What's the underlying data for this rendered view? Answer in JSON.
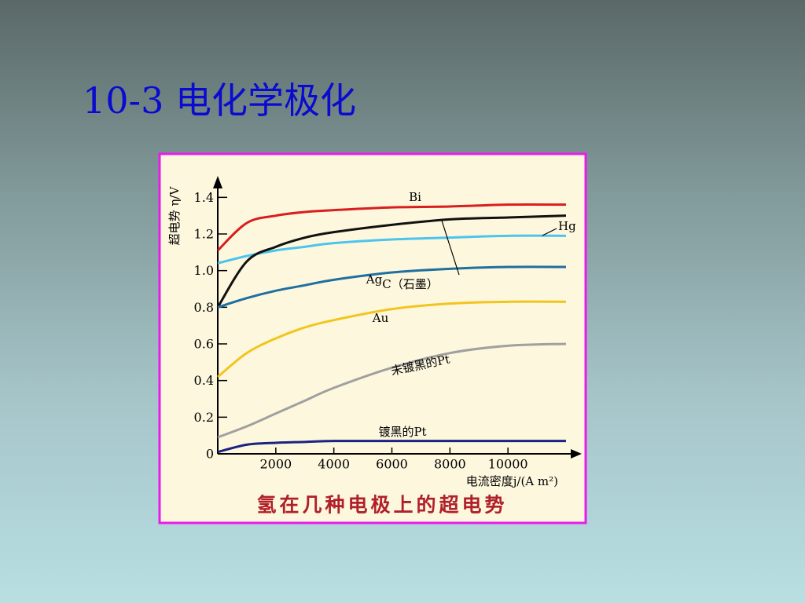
{
  "slide_title": "10-3 电化学极化",
  "chart_data": {
    "type": "line",
    "y_label": "超电势 η/V",
    "x_label": "电流密度j/(A m²)",
    "caption": "氢在几种电极上的超电势",
    "x": [
      0,
      1000,
      2000,
      3000,
      4000,
      6000,
      8000,
      10000,
      12000
    ],
    "series": [
      {
        "name": "Bi",
        "color": "#d81e1e",
        "values": [
          1.11,
          1.26,
          1.3,
          1.32,
          1.33,
          1.345,
          1.35,
          1.36,
          1.36
        ]
      },
      {
        "name": "Hg",
        "color": "#4cc4ee",
        "values": [
          1.04,
          1.08,
          1.11,
          1.13,
          1.15,
          1.17,
          1.18,
          1.19,
          1.19
        ]
      },
      {
        "name": "C（石墨）",
        "color": "#111111",
        "values": [
          0.8,
          1.05,
          1.13,
          1.18,
          1.21,
          1.25,
          1.28,
          1.29,
          1.3
        ]
      },
      {
        "name": "Ag",
        "color": "#1f6f9f",
        "values": [
          0.8,
          0.85,
          0.89,
          0.92,
          0.95,
          0.99,
          1.01,
          1.02,
          1.02
        ]
      },
      {
        "name": "Au",
        "color": "#f2c51e",
        "values": [
          0.42,
          0.55,
          0.63,
          0.69,
          0.73,
          0.79,
          0.82,
          0.83,
          0.83
        ]
      },
      {
        "name": "未镀黑的Pt",
        "color": "#a0a0a0",
        "values": [
          0.09,
          0.15,
          0.22,
          0.29,
          0.36,
          0.47,
          0.55,
          0.59,
          0.6
        ]
      },
      {
        "name": "镀黑的Pt",
        "color": "#1a237e",
        "values": [
          0.01,
          0.05,
          0.06,
          0.065,
          0.07,
          0.07,
          0.07,
          0.07,
          0.07
        ]
      }
    ],
    "xlim": [
      0,
      12000
    ],
    "xticks": [
      2000,
      4000,
      6000,
      8000,
      10000
    ],
    "ylim": [
      0,
      1.5
    ],
    "yticks": [
      0,
      0.2,
      0.4,
      0.6,
      0.8,
      {
        "value": 1,
        "label": "1.0"
      },
      1.2,
      1.4
    ]
  }
}
